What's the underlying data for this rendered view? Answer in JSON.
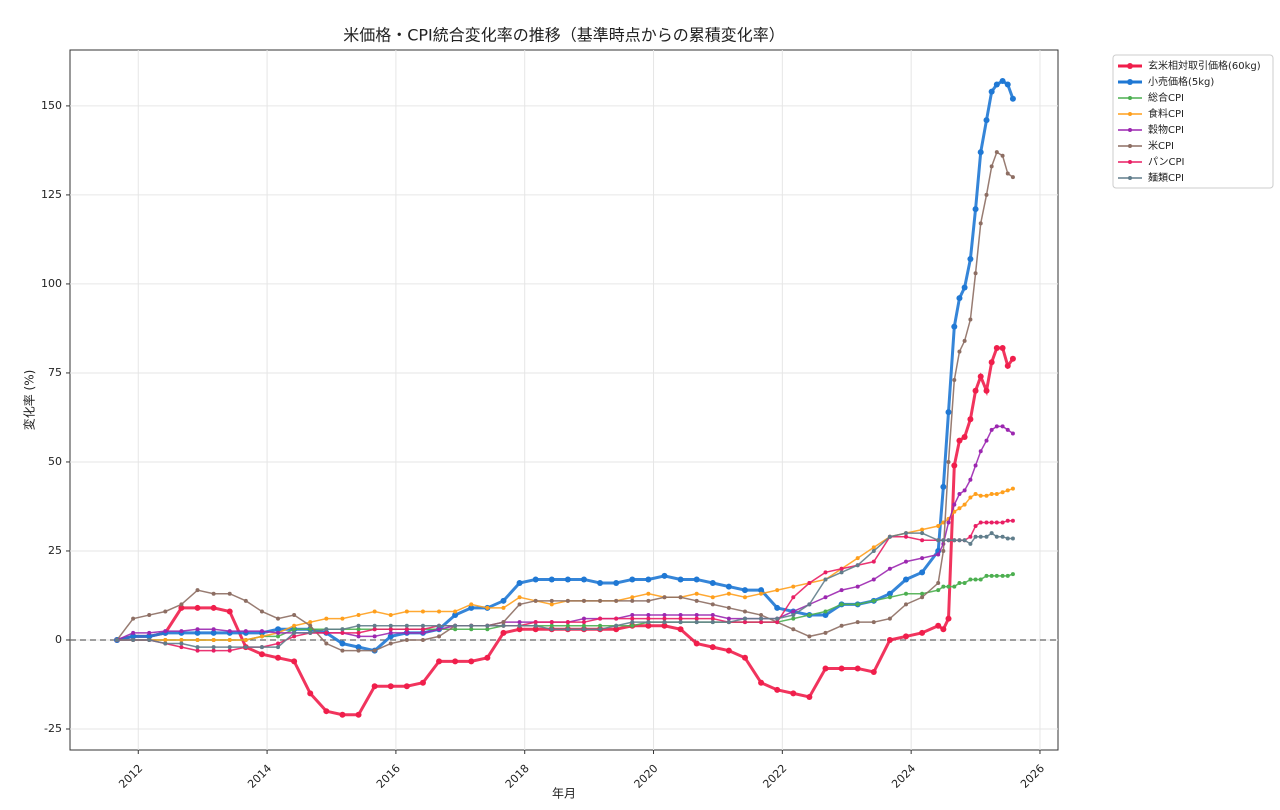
{
  "chart_data": {
    "type": "line",
    "title": "米価格・CPI統合変化率の推移（基準時点からの累積変化率）",
    "x_label": "年月",
    "y_label": "変化率 (%)",
    "x": [
      2011.67,
      2011.92,
      2012.17,
      2012.42,
      2012.67,
      2012.92,
      2013.17,
      2013.42,
      2013.67,
      2013.92,
      2014.17,
      2014.42,
      2014.67,
      2014.92,
      2015.17,
      2015.42,
      2015.67,
      2015.92,
      2016.17,
      2016.42,
      2016.67,
      2016.92,
      2017.17,
      2017.42,
      2017.67,
      2017.92,
      2018.17,
      2018.42,
      2018.67,
      2018.92,
      2019.17,
      2019.42,
      2019.67,
      2019.92,
      2020.17,
      2020.42,
      2020.67,
      2020.92,
      2021.17,
      2021.42,
      2021.67,
      2021.92,
      2022.17,
      2022.42,
      2022.67,
      2022.92,
      2023.17,
      2023.42,
      2023.67,
      2023.92,
      2024.17,
      2024.42,
      2024.5,
      2024.58,
      2024.67,
      2024.75,
      2024.83,
      2024.92,
      2025.0,
      2025.08,
      2025.17,
      2025.25,
      2025.33,
      2025.42,
      2025.5,
      2025.58
    ],
    "series": [
      {
        "name": "玄米相対取引価格(60kg)",
        "color": "#f01e4b",
        "width": 3,
        "values": [
          0,
          1,
          1,
          2,
          9,
          9,
          9,
          8,
          -2,
          -4,
          -5,
          -6,
          -15,
          -20,
          -21,
          -21,
          -13,
          -13,
          -13,
          -12,
          -6,
          -6,
          -6,
          -5,
          2,
          3,
          3,
          3,
          3,
          3,
          3,
          3,
          4,
          4,
          4,
          3,
          -1,
          -2,
          -3,
          -5,
          -12,
          -14,
          -15,
          -16,
          -8,
          -8,
          -8,
          -9,
          0,
          1,
          2,
          4,
          3,
          6,
          49,
          56,
          57,
          62,
          70,
          74,
          70,
          78,
          82,
          82,
          77,
          79
        ]
      },
      {
        "name": "小売価格(5kg)",
        "color": "#1f78d4",
        "width": 3,
        "values": [
          0,
          1,
          1,
          2,
          2,
          2,
          2,
          2,
          2,
          2,
          3,
          3,
          3,
          2,
          -1,
          -2,
          -3,
          1,
          2,
          2,
          3,
          7,
          9,
          9,
          11,
          16,
          17,
          17,
          17,
          17,
          16,
          16,
          17,
          17,
          18,
          17,
          17,
          16,
          15,
          14,
          14,
          9,
          8,
          7,
          7,
          10,
          10,
          11,
          13,
          17,
          19,
          25,
          43,
          64,
          88,
          96,
          99,
          107,
          121,
          137,
          146,
          154,
          156,
          157,
          156,
          152
        ]
      },
      {
        "name": "総合CPI",
        "color": "#4caf50",
        "width": 1.5,
        "values": [
          0,
          0,
          0,
          0,
          0,
          0,
          0,
          0,
          0,
          1,
          1,
          3,
          3,
          3,
          3,
          3,
          3,
          3,
          3,
          3,
          3,
          3,
          3,
          3,
          4,
          4,
          4,
          4,
          4,
          4,
          4,
          4,
          4,
          5,
          5,
          5,
          5,
          5,
          5,
          5,
          5,
          5,
          6,
          7,
          8,
          10,
          10,
          11,
          12,
          13,
          13,
          14,
          15,
          15,
          15,
          16,
          16,
          17,
          17,
          17,
          18,
          18,
          18,
          18,
          18,
          18.5
        ]
      },
      {
        "name": "食料CPI",
        "color": "#ff9f1c",
        "width": 1.5,
        "values": [
          0,
          0,
          0,
          0,
          0,
          0,
          0,
          0,
          0,
          1,
          2,
          4,
          5,
          6,
          6,
          7,
          8,
          7,
          8,
          8,
          8,
          8,
          10,
          9,
          9,
          12,
          11,
          10,
          11,
          11,
          11,
          11,
          12,
          13,
          12,
          12,
          13,
          12,
          13,
          12,
          13,
          14,
          15,
          16,
          17,
          20,
          23,
          26,
          29,
          30,
          31,
          32,
          33,
          34,
          36,
          37,
          38,
          40,
          41,
          40.5,
          40.5,
          41,
          41,
          41.5,
          42,
          42.5
        ]
      },
      {
        "name": "穀物CPI",
        "color": "#9c27b0",
        "width": 1.5,
        "values": [
          0,
          2,
          2,
          2.5,
          2.5,
          3,
          3,
          2.5,
          2.5,
          2.5,
          2,
          2,
          2,
          2,
          2,
          1,
          1,
          2,
          2,
          2,
          3,
          4,
          4,
          4,
          5,
          5,
          5,
          5,
          5,
          6,
          6,
          6,
          7,
          7,
          7,
          7,
          7,
          7,
          6,
          6,
          6,
          6,
          8,
          10,
          12,
          14,
          15,
          17,
          20,
          22,
          23,
          24,
          27,
          33,
          38,
          41,
          42,
          45,
          49,
          53,
          56,
          59,
          60,
          60,
          59,
          58
        ]
      },
      {
        "name": "米CPI",
        "color": "#8d6e63",
        "width": 1.5,
        "values": [
          0,
          6,
          7,
          8,
          10,
          14,
          13,
          13,
          11,
          8,
          6,
          7,
          4,
          -1,
          -3,
          -3,
          -3,
          -1,
          0,
          0,
          1,
          4,
          4,
          4,
          5,
          10,
          11,
          11,
          11,
          11,
          11,
          11,
          11,
          11,
          12,
          12,
          11,
          10,
          9,
          8,
          7,
          5,
          3,
          1,
          2,
          4,
          5,
          5,
          6,
          10,
          12,
          16,
          25,
          50,
          73,
          81,
          84,
          90,
          103,
          117,
          125,
          133,
          137,
          136,
          131,
          130
        ]
      },
      {
        "name": "パンCPI",
        "color": "#e91e63",
        "width": 1.5,
        "values": [
          0,
          0,
          0,
          -1,
          -2,
          -3,
          -3,
          -3,
          -2,
          -2,
          -1,
          1,
          2,
          2,
          2,
          2,
          3,
          3,
          3,
          3,
          4,
          4,
          4,
          4,
          4,
          4,
          5,
          5,
          5,
          5,
          6,
          6,
          6,
          6,
          6,
          6,
          6,
          6,
          5,
          5,
          5,
          5,
          12,
          16,
          19,
          20,
          21,
          22,
          29,
          29,
          28,
          28,
          28,
          28,
          28,
          28,
          28,
          29,
          32,
          33,
          33,
          33,
          33,
          33,
          33.5,
          33.5
        ]
      },
      {
        "name": "麺類CPI",
        "color": "#607d8b",
        "width": 1.5,
        "values": [
          0,
          0,
          0,
          -1,
          -1,
          -2,
          -2,
          -2,
          -2,
          -2,
          -2,
          2,
          2,
          3,
          3,
          4,
          4,
          4,
          4,
          4,
          4,
          4,
          4,
          4,
          4,
          4,
          4,
          3,
          3,
          3,
          3,
          4,
          5,
          5,
          5,
          5,
          5,
          5,
          5,
          6,
          6,
          6,
          7,
          10,
          17,
          19,
          21,
          25,
          29,
          30,
          30,
          28,
          28,
          28,
          28,
          28,
          28,
          27,
          29,
          29,
          29,
          30,
          29,
          29,
          28.5,
          28.5
        ]
      }
    ],
    "xlim": [
      2010.94,
      2026.28
    ],
    "xticks": [
      2012,
      2014,
      2016,
      2018,
      2020,
      2022,
      2024,
      2026
    ],
    "ylim": [
      -30.9,
      165.7
    ],
    "yticks": [
      -25,
      0,
      25,
      50,
      75,
      100,
      125,
      150
    ],
    "hline": 0,
    "grid": true,
    "legend": "outside upper right"
  }
}
